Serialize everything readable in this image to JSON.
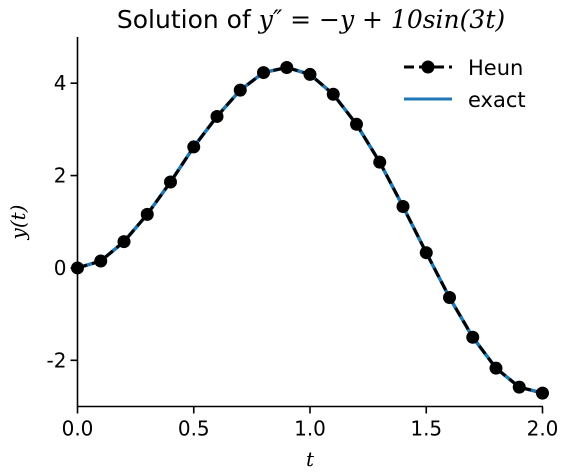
{
  "chart_data": {
    "type": "line",
    "title": "Solution of y'' = −y + 10sin(3t)",
    "title_parts": {
      "prefix": "Solution of ",
      "equation": "y″ = −y + 10sin(3t)"
    },
    "xlabel": "t",
    "ylabel": "y(t)",
    "xlim": [
      0,
      2
    ],
    "ylim": [
      -3,
      5
    ],
    "x_ticks": [
      0,
      0.5,
      1,
      1.5,
      2
    ],
    "x_tick_labels": [
      "0.0",
      "0.5",
      "1.0",
      "1.5",
      "2.0"
    ],
    "y_ticks": [
      -2,
      0,
      2,
      4
    ],
    "y_tick_labels": [
      "-2",
      "0",
      "2",
      "4"
    ],
    "grid": false,
    "legend_position": "top-right",
    "series": [
      {
        "name": "Heun",
        "style": "dashed line with circle markers",
        "color": "#000000",
        "x": [
          0.0,
          0.1,
          0.2,
          0.3,
          0.4,
          0.5,
          0.6,
          0.7,
          0.8,
          0.9,
          1.0,
          1.1,
          1.2,
          1.3,
          1.4,
          1.5,
          1.6,
          1.7,
          1.8,
          1.9,
          2.0
        ],
        "values": [
          0.0,
          0.15,
          0.57,
          1.16,
          1.86,
          2.62,
          3.28,
          3.85,
          4.23,
          4.34,
          4.19,
          3.76,
          3.11,
          2.29,
          1.33,
          0.33,
          -0.64,
          -1.5,
          -2.17,
          -2.58,
          -2.71
        ]
      },
      {
        "name": "exact",
        "style": "solid line",
        "color": "#1f77b4",
        "x": [
          0.0,
          0.1,
          0.2,
          0.3,
          0.4,
          0.5,
          0.6,
          0.7,
          0.8,
          0.9,
          1.0,
          1.1,
          1.2,
          1.3,
          1.4,
          1.5,
          1.6,
          1.7,
          1.8,
          1.9,
          2.0
        ],
        "values": [
          0.0,
          0.15,
          0.57,
          1.16,
          1.86,
          2.62,
          3.28,
          3.85,
          4.23,
          4.34,
          4.19,
          3.76,
          3.11,
          2.29,
          1.33,
          0.33,
          -0.64,
          -1.5,
          -2.17,
          -2.58,
          -2.71
        ]
      }
    ]
  }
}
